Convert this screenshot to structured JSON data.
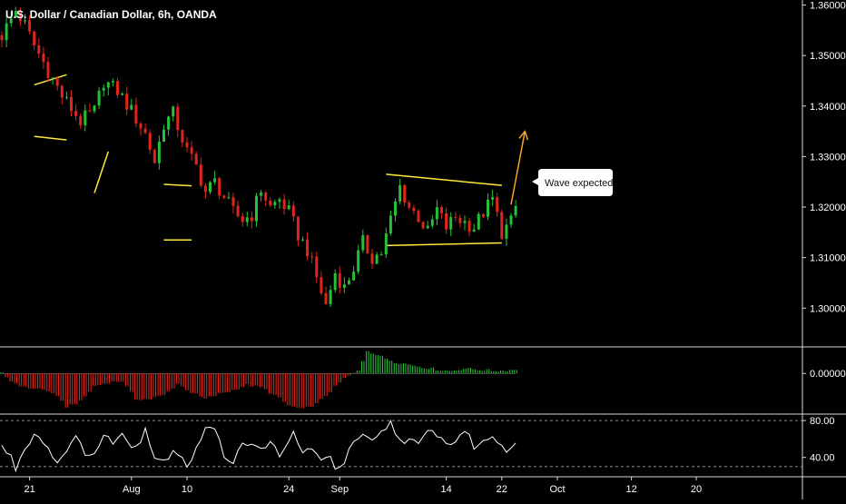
{
  "chart_data": {
    "type": "candlestick",
    "title": "U.S. Dollar / Canadian Dollar, 6h, OANDA",
    "price": {
      "ylim": [
        1.2925,
        1.361
      ],
      "y_ticks": [
        "1.36000",
        "1.35000",
        "1.34000",
        "1.33000",
        "1.32000",
        "1.31000",
        "1.30000"
      ],
      "y_tick_values": [
        1.36,
        1.35,
        1.34,
        1.33,
        1.32,
        1.31,
        1.3
      ],
      "close_path": [
        [
          0,
          1.354
        ],
        [
          3,
          1.359
        ],
        [
          5,
          1.356
        ],
        [
          7,
          1.352
        ],
        [
          10,
          1.347
        ],
        [
          13,
          1.342
        ],
        [
          17,
          1.337
        ],
        [
          20,
          1.339
        ],
        [
          22,
          1.345
        ],
        [
          25,
          1.343
        ],
        [
          28,
          1.339
        ],
        [
          31,
          1.3345
        ],
        [
          33,
          1.329
        ],
        [
          35,
          1.3365
        ],
        [
          37,
          1.3385
        ],
        [
          40,
          1.331
        ],
        [
          42,
          1.328
        ],
        [
          44,
          1.323
        ],
        [
          46,
          1.325
        ],
        [
          48,
          1.322
        ],
        [
          50,
          1.319
        ],
        [
          52,
          1.3175
        ],
        [
          54,
          1.3185
        ],
        [
          56,
          1.3235
        ],
        [
          58,
          1.32
        ],
        [
          60,
          1.3215
        ],
        [
          62,
          1.319
        ],
        [
          64,
          1.3145
        ],
        [
          66,
          1.3115
        ],
        [
          68,
          1.306
        ],
        [
          70,
          1.3005
        ],
        [
          72,
          1.307
        ],
        [
          74,
          1.304
        ],
        [
          76,
          1.308
        ],
        [
          78,
          1.313
        ],
        [
          80,
          1.31
        ],
        [
          82,
          1.311
        ],
        [
          84,
          1.3175
        ],
        [
          86,
          1.324
        ],
        [
          88,
          1.32
        ],
        [
          90,
          1.318
        ],
        [
          92,
          1.315
        ],
        [
          94,
          1.3195
        ],
        [
          96,
          1.316
        ],
        [
          98,
          1.318
        ],
        [
          100,
          1.317
        ],
        [
          102,
          1.316
        ],
        [
          104,
          1.319
        ],
        [
          106,
          1.3215
        ],
        [
          108,
          1.315
        ],
        [
          110,
          1.317
        ],
        [
          111,
          1.32
        ]
      ],
      "annotations": [
        {
          "type": "pattern-lines",
          "x": [
            7,
            14
          ],
          "upper": [
            1.3442,
            1.3462
          ],
          "lower": [
            1.334,
            1.3333
          ]
        },
        {
          "type": "trend-line",
          "x": [
            20,
            23
          ],
          "y": [
            1.3228,
            1.331
          ]
        },
        {
          "type": "pattern-lines",
          "x": [
            35,
            41
          ],
          "upper": [
            1.3245,
            1.3242
          ],
          "lower": [
            1.3135,
            1.3135
          ]
        },
        {
          "type": "pattern-lines",
          "x": [
            83,
            108
          ],
          "upper": [
            1.3265,
            1.3243
          ],
          "lower": [
            1.3124,
            1.3129
          ]
        },
        {
          "type": "arrow",
          "x": [
            110,
            113
          ],
          "y": [
            1.3205,
            1.335
          ],
          "color": "#f5a623"
        },
        {
          "type": "callout",
          "text": "Wave expected"
        }
      ]
    },
    "oscillator": {
      "ylim": [
        -0.0062,
        0.004
      ],
      "y_ticks": [
        "0.00000"
      ],
      "y_tick_values": [
        0.0
      ],
      "curve": [
        [
          0,
          0.0
        ],
        [
          2,
          -0.0012
        ],
        [
          5,
          -0.0022
        ],
        [
          8,
          -0.0024
        ],
        [
          11,
          -0.003
        ],
        [
          14,
          -0.0052
        ],
        [
          17,
          -0.0044
        ],
        [
          20,
          -0.002
        ],
        [
          23,
          -0.0014
        ],
        [
          26,
          -0.0012
        ],
        [
          29,
          -0.004
        ],
        [
          32,
          -0.004
        ],
        [
          35,
          -0.0034
        ],
        [
          38,
          -0.0016
        ],
        [
          41,
          -0.003
        ],
        [
          44,
          -0.004
        ],
        [
          47,
          -0.0032
        ],
        [
          50,
          -0.0026
        ],
        [
          53,
          -0.0018
        ],
        [
          56,
          -0.0022
        ],
        [
          59,
          -0.0034
        ],
        [
          62,
          -0.005
        ],
        [
          65,
          -0.0056
        ],
        [
          68,
          -0.0048
        ],
        [
          71,
          -0.0028
        ],
        [
          74,
          -0.0008
        ],
        [
          77,
          0.0004
        ],
        [
          79,
          0.0036
        ],
        [
          82,
          0.0026
        ],
        [
          85,
          0.0018
        ],
        [
          88,
          0.0014
        ],
        [
          91,
          0.001
        ],
        [
          94,
          0.0006
        ],
        [
          97,
          0.0004
        ],
        [
          100,
          0.0008
        ],
        [
          103,
          0.0006
        ],
        [
          106,
          0.0004
        ],
        [
          109,
          0.0005
        ],
        [
          111,
          0.0006
        ]
      ]
    },
    "rsi": {
      "ylim": [
        20,
        86
      ],
      "y_ticks": [
        "80.00",
        "40.00"
      ],
      "y_tick_values": [
        80,
        40
      ],
      "levels": [
        80,
        30
      ],
      "values": [
        [
          0,
          52
        ],
        [
          2,
          40
        ],
        [
          3,
          28
        ],
        [
          5,
          50
        ],
        [
          7,
          66
        ],
        [
          9,
          58
        ],
        [
          11,
          42
        ],
        [
          12,
          34
        ],
        [
          14,
          50
        ],
        [
          16,
          60
        ],
        [
          18,
          46
        ],
        [
          20,
          44
        ],
        [
          22,
          62
        ],
        [
          24,
          58
        ],
        [
          26,
          64
        ],
        [
          28,
          52
        ],
        [
          30,
          60
        ],
        [
          31,
          72
        ],
        [
          33,
          40
        ],
        [
          35,
          36
        ],
        [
          37,
          48
        ],
        [
          39,
          42
        ],
        [
          40,
          30
        ],
        [
          42,
          48
        ],
        [
          44,
          74
        ],
        [
          46,
          70
        ],
        [
          48,
          42
        ],
        [
          50,
          36
        ],
        [
          52,
          58
        ],
        [
          54,
          52
        ],
        [
          56,
          48
        ],
        [
          58,
          60
        ],
        [
          60,
          38
        ],
        [
          62,
          56
        ],
        [
          63,
          68
        ],
        [
          65,
          44
        ],
        [
          67,
          52
        ],
        [
          69,
          34
        ],
        [
          71,
          40
        ],
        [
          72,
          30
        ],
        [
          74,
          34
        ],
        [
          76,
          58
        ],
        [
          78,
          62
        ],
        [
          80,
          56
        ],
        [
          82,
          66
        ],
        [
          84,
          78
        ],
        [
          86,
          58
        ],
        [
          88,
          60
        ],
        [
          90,
          52
        ],
        [
          92,
          68
        ],
        [
          94,
          66
        ],
        [
          96,
          54
        ],
        [
          98,
          58
        ],
        [
          100,
          70
        ],
        [
          102,
          52
        ],
        [
          104,
          56
        ],
        [
          106,
          64
        ],
        [
          108,
          54
        ],
        [
          109,
          46
        ],
        [
          110,
          54
        ],
        [
          111,
          58
        ]
      ]
    },
    "x_axis": {
      "labels": [
        "21",
        "Aug",
        "10",
        "24",
        "Sep",
        "14",
        "22",
        "Oct",
        "12",
        "20"
      ],
      "label_positions": [
        6,
        28,
        40,
        62,
        73,
        96,
        108,
        120,
        136,
        150
      ],
      "x_max": 172
    },
    "colors": {
      "up": "#26c036",
      "down": "#e0251b",
      "pattern": "#ffea3b",
      "arrow": "#f5a623",
      "line": "#ffffff"
    }
  }
}
